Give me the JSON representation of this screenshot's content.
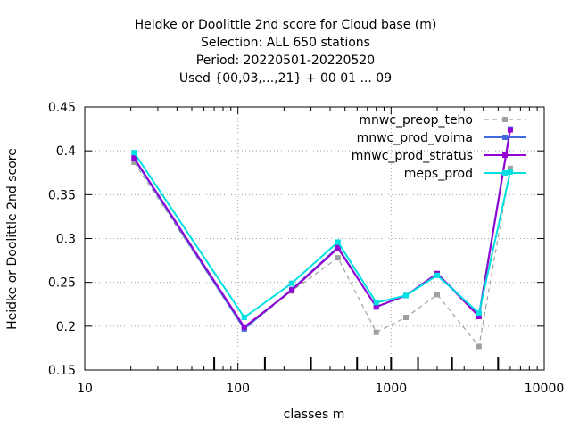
{
  "titles": [
    "Heidke or Doolittle 2nd score  for Cloud base (m)",
    "Selection: ALL    650 stations",
    "Period: 20220501-20220520",
    "Used {00,03,...,21} + 00 01 ... 09"
  ],
  "axes": {
    "xlabel": "classes m",
    "ylabel": "Heidke or Doolittle 2nd score",
    "x_ticks": [
      "10",
      "100",
      "1000",
      "10000"
    ],
    "y_ticks": [
      "0.15",
      "0.2",
      "0.25",
      "0.3",
      "0.35",
      "0.4",
      "0.45"
    ]
  },
  "chart_data": {
    "type": "line",
    "title": "Heidke or Doolittle 2nd score  for Cloud base (m)",
    "xlabel": "classes m",
    "ylabel": "Heidke or Doolittle 2nd score",
    "x_scale": "log",
    "xlim": [
      10,
      10000
    ],
    "ylim": [
      0.15,
      0.45
    ],
    "grid": true,
    "legend_position": "top-right",
    "class_markers": [
      70,
      150,
      300,
      600,
      1000,
      1500,
      2500,
      5000
    ],
    "series": [
      {
        "name": "mnwc_preop_teho",
        "color": "#a0a0a0",
        "dashed": true,
        "x": [
          21,
          110,
          225,
          450,
          800,
          1250,
          2000,
          3750,
          6000
        ],
        "values": [
          0.387,
          0.197,
          0.24,
          0.278,
          0.193,
          0.21,
          0.236,
          0.177,
          0.38
        ]
      },
      {
        "name": "mnwc_prod_voima",
        "color": "#4169e1",
        "dashed": false,
        "x": [
          21,
          110,
          225,
          450,
          800,
          1250,
          2000,
          3750,
          6000
        ],
        "values": [
          0.391,
          0.197,
          0.242,
          0.29,
          0.222,
          0.235,
          0.26,
          0.213,
          0.425
        ]
      },
      {
        "name": "mnwc_prod_stratus",
        "color": "#9400d3",
        "dashed": false,
        "x": [
          21,
          110,
          225,
          450,
          800,
          1250,
          2000,
          3750,
          6000
        ],
        "values": [
          0.392,
          0.199,
          0.241,
          0.289,
          0.222,
          0.235,
          0.26,
          0.211,
          0.424
        ]
      },
      {
        "name": "meps_prod",
        "color": "#00e0e0",
        "dashed": false,
        "x": [
          21,
          110,
          225,
          450,
          800,
          1250,
          2000,
          3750,
          6000
        ],
        "values": [
          0.398,
          0.21,
          0.249,
          0.296,
          0.227,
          0.235,
          0.258,
          0.215,
          0.376
        ]
      }
    ]
  }
}
